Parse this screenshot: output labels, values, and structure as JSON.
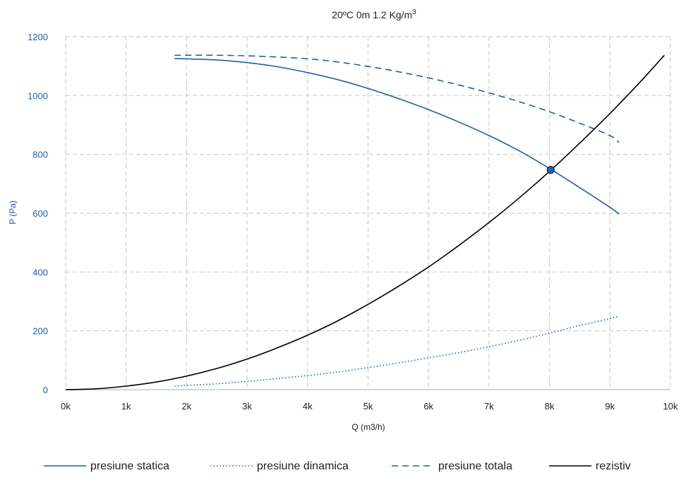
{
  "chart_data": {
    "type": "line",
    "title_main": "20ºC 0m 1.2 Kg/m",
    "title_sup": "3",
    "xlabel": "Q (m3/h)",
    "ylabel": "P (Pa)",
    "xlim": [
      0,
      10000
    ],
    "ylim": [
      0,
      1200
    ],
    "x_ticks": [
      0,
      1000,
      2000,
      3000,
      4000,
      5000,
      6000,
      7000,
      8000,
      9000,
      10000
    ],
    "x_tick_labels": [
      "0k",
      "1k",
      "2k",
      "3k",
      "4k",
      "5k",
      "6k",
      "7k",
      "8k",
      "9k",
      "10k"
    ],
    "y_ticks": [
      0,
      200,
      400,
      600,
      800,
      1000,
      1200
    ],
    "y_tick_labels": [
      "0",
      "200",
      "400",
      "600",
      "800",
      "1000",
      "1200"
    ],
    "grid": true,
    "legend_position": "bottom",
    "operating_point": {
      "x": 8020,
      "y": 747
    },
    "series": [
      {
        "name": "presiune statica",
        "style": "solid",
        "color": "#1f5fa6",
        "x": [
          1800,
          2500,
          3000,
          3500,
          4000,
          4500,
          5000,
          5500,
          6000,
          6500,
          7000,
          7500,
          8000,
          8500,
          9000,
          9150
        ],
        "y": [
          1126,
          1121,
          1112,
          1098,
          1078,
          1054,
          1024,
          990,
          952,
          910,
          864,
          812,
          752,
          687,
          620,
          597
        ]
      },
      {
        "name": "presiune dinamica",
        "style": "dotted",
        "color": "#1f5fa6",
        "x": [
          1800,
          2500,
          3000,
          3500,
          4000,
          4500,
          5000,
          5500,
          6000,
          6500,
          7000,
          7500,
          8000,
          8500,
          9000,
          9150
        ],
        "y": [
          12,
          20,
          28,
          38,
          48,
          60,
          75,
          91,
          108,
          126,
          146,
          168,
          192,
          218,
          242,
          250
        ]
      },
      {
        "name": "presiune totala",
        "style": "dashed",
        "color": "#1f5fa6",
        "x": [
          1800,
          2500,
          3000,
          3500,
          4000,
          4500,
          5000,
          5500,
          6000,
          6500,
          7000,
          7500,
          8000,
          8500,
          9000,
          9150
        ],
        "y": [
          1137,
          1137,
          1135,
          1131,
          1125,
          1114,
          1099,
          1081,
          1060,
          1036,
          1009,
          979,
          945,
          906,
          864,
          840
        ]
      },
      {
        "name": "rezistiv",
        "style": "solid",
        "color": "#000000",
        "x": [
          0,
          500,
          1000,
          1500,
          2000,
          2500,
          3000,
          3500,
          4000,
          4500,
          5000,
          5500,
          6000,
          6500,
          7000,
          7500,
          8000,
          8500,
          9000,
          9500,
          9900
        ],
        "y": [
          0,
          3,
          12,
          26,
          46,
          72,
          104,
          142,
          185,
          234,
          290,
          351,
          417,
          490,
          568,
          652,
          742,
          838,
          939,
          1046,
          1137
        ]
      }
    ]
  },
  "colors": {
    "axis_text_blue": "#1f5fa6",
    "grid": "#cfcfcf",
    "baseline": "#c7d9ee"
  }
}
